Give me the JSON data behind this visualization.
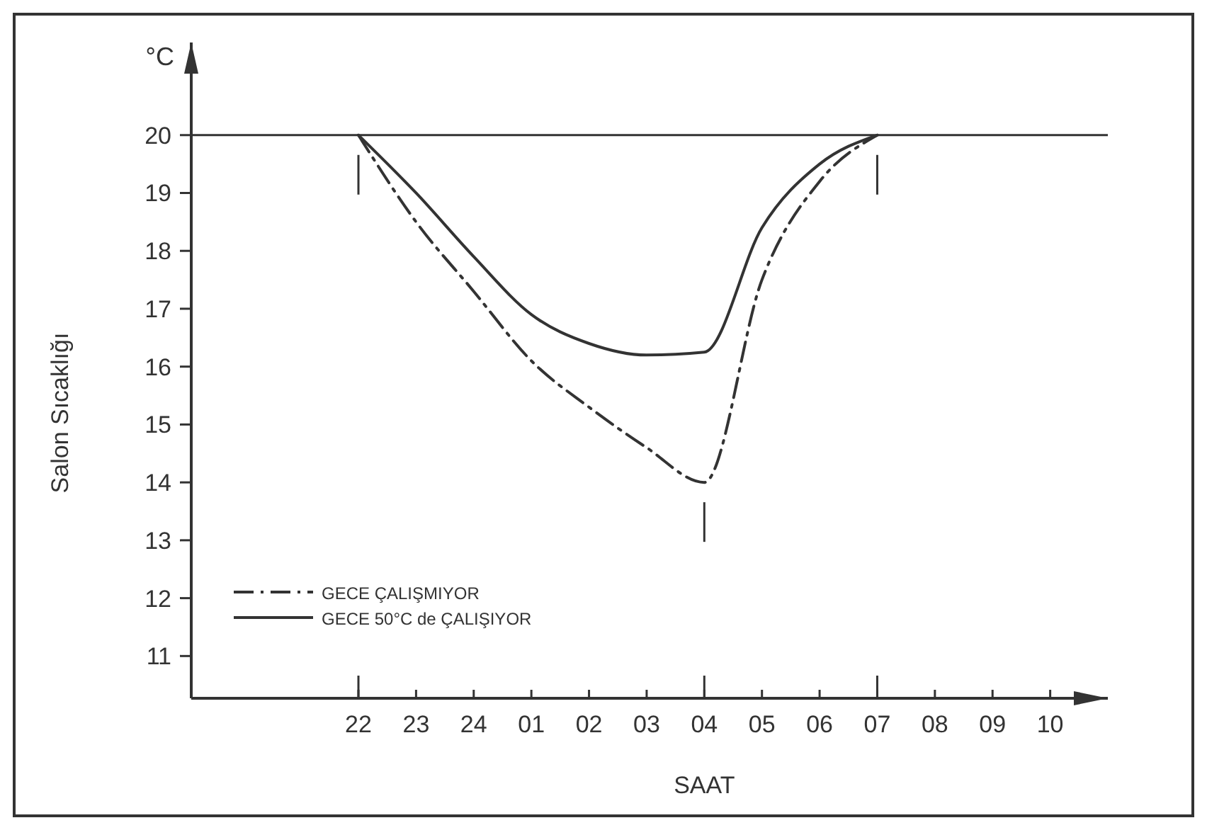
{
  "chart_data": {
    "type": "line",
    "ylabel": "Salon Sıcaklığı",
    "xlabel": "SAAT",
    "annotations": [
      "°C"
    ],
    "categories": [
      "22",
      "23",
      "24",
      "01",
      "02",
      "03",
      "04",
      "05",
      "06",
      "07",
      "08",
      "09",
      "10"
    ],
    "ylim": [
      10.27,
      21.6
    ],
    "yticks": [
      11,
      12,
      13,
      14,
      15,
      16,
      17,
      18,
      19,
      20
    ],
    "legend": "bottom left",
    "marker": "none",
    "ref_lines": [
      {
        "axis": "y",
        "value": 20,
        "color": "#333333"
      }
    ],
    "series": [
      {
        "name": "GECE ÇALIŞMIYOR",
        "color": "#333333",
        "line_style": "dashdot",
        "values": [
          20,
          18.5,
          17.3,
          16.1,
          15.3,
          14.6,
          14.0,
          17.5,
          19.2,
          20,
          null,
          null,
          null
        ]
      },
      {
        "name": "GECE 50°C de ÇALIŞIYOR",
        "color": "#333333",
        "line_style": "solid",
        "values": [
          20,
          19.0,
          17.9,
          16.9,
          16.4,
          16.2,
          16.25,
          18.4,
          19.5,
          20,
          null,
          null,
          null
        ]
      }
    ]
  }
}
